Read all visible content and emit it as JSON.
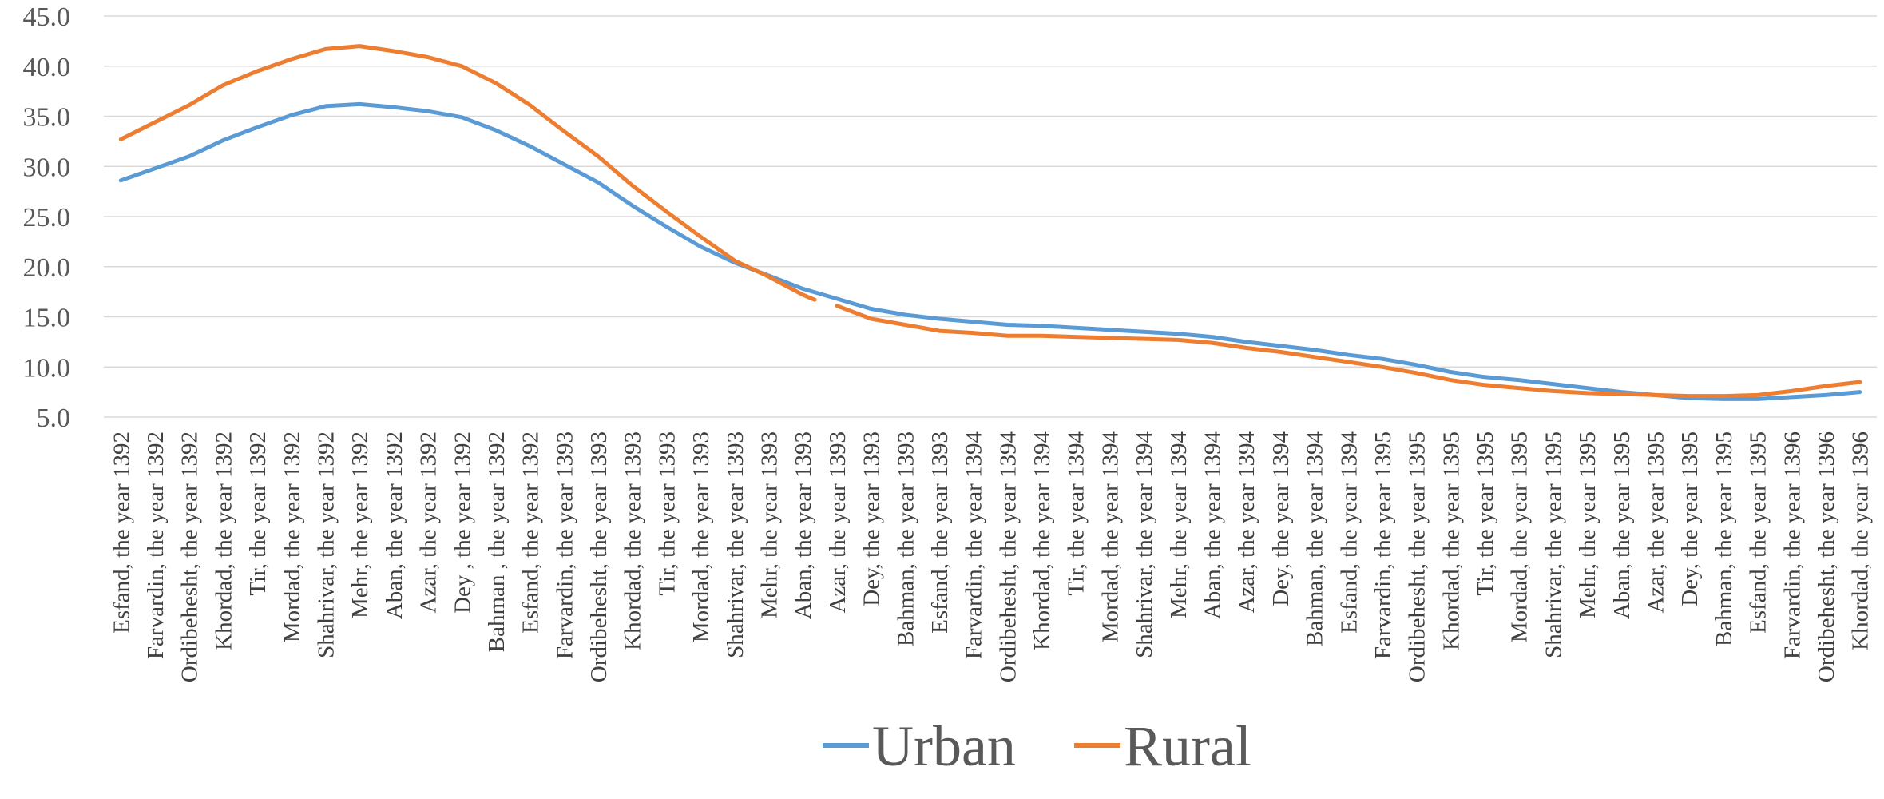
{
  "chart_data": {
    "type": "line",
    "categories": [
      "Esfand, the year 1392",
      "Farvardin, the year 1392",
      "Ordibehesht, the year 1392",
      "Khordad, the year 1392",
      "Tir, the year 1392",
      "Mordad, the year 1392",
      "Shahrivar, the year 1392",
      "Mehr, the year 1392",
      "Aban, the year 1392",
      "Azar, the year 1392",
      "Dey , the year 1392",
      "Bahman , the year 1392",
      "Esfand, the year 1392",
      "Farvardin, the year 1393",
      "Ordibehesht, the year 1393",
      "Khordad, the year 1393",
      "Tir, the year 1393",
      "Mordad, the year 1393",
      "Shahrivar, the year 1393",
      "Mehr, the year 1393",
      "Aban, the year 1393",
      "Azar, the year 1393",
      "Dey, the year 1393",
      "Bahman, the year 1393",
      "Esfand, the year 1393",
      "Farvardin, the year 1394",
      "Ordibehesht, the year 1394",
      "Khordad, the year 1394",
      "Tir, the year 1394",
      "Mordad, the year 1394",
      "Shahrivar, the year 1394",
      "Mehr, the year 1394",
      "Aban, the year 1394",
      "Azar, the year 1394",
      "Dey, the year 1394",
      "Bahman, the year 1394",
      "Esfand, the year 1394",
      "Farvardin, the year 1395",
      "Ordibehesht, the year 1395",
      "Khordad, the year 1395",
      "Tir, the year 1395",
      "Mordad, the year 1395",
      "Shahrivar, the year 1395",
      "Mehr, the year 1395",
      "Aban, the year 1395",
      "Azar, the year 1395",
      "Dey, the year 1395",
      "Bahman, the year 1395",
      "Esfand, the year 1395",
      "Farvardin, the year 1396",
      "Ordibehesht, the year 1396",
      "Khordad, the year 1396"
    ],
    "series": [
      {
        "name": "Urban",
        "color": "#5b9bd5",
        "values": [
          28.6,
          29.8,
          31.0,
          32.6,
          33.9,
          35.1,
          36.0,
          36.2,
          35.9,
          35.5,
          34.9,
          33.6,
          32.0,
          30.2,
          28.4,
          26.1,
          24.0,
          22.0,
          20.4,
          19.1,
          17.8,
          16.8,
          15.8,
          15.2,
          14.8,
          14.5,
          14.2,
          14.1,
          13.9,
          13.7,
          13.5,
          13.3,
          13.0,
          12.5,
          12.1,
          11.7,
          11.2,
          10.8,
          10.2,
          9.5,
          9.0,
          8.7,
          8.3,
          7.9,
          7.5,
          7.2,
          6.9,
          6.8,
          6.8,
          7.0,
          7.2,
          7.5
        ]
      },
      {
        "name": "Rural",
        "color": "#ed7d31",
        "values": [
          32.7,
          34.4,
          36.1,
          38.1,
          39.5,
          40.7,
          41.7,
          42.0,
          41.5,
          40.9,
          40.0,
          38.3,
          36.1,
          33.5,
          31.0,
          28.1,
          25.5,
          23.0,
          20.6,
          19.0,
          17.2,
          null,
          14.8,
          14.2,
          13.6,
          13.4,
          13.1,
          13.1,
          13.0,
          12.9,
          12.8,
          12.7,
          12.4,
          11.9,
          11.5,
          11.0,
          10.5,
          10.0,
          9.4,
          8.7,
          8.2,
          7.9,
          7.6,
          7.4,
          7.3,
          7.2,
          7.1,
          7.1,
          7.2,
          7.6,
          8.1,
          8.5
        ]
      }
    ],
    "gap_segments": [
      {
        "series": "Rural",
        "from_index": 20,
        "from_value": 17.2,
        "to_index": 21,
        "to_value": 16.1
      }
    ],
    "yticks": [
      "5.0",
      "10.0",
      "15.0",
      "20.0",
      "25.0",
      "30.0",
      "35.0",
      "40.0",
      "45.0"
    ],
    "ylim": [
      5,
      45
    ],
    "title": "",
    "xlabel": "",
    "ylabel": "",
    "grid": "horizontal",
    "legend_position": "bottom"
  }
}
